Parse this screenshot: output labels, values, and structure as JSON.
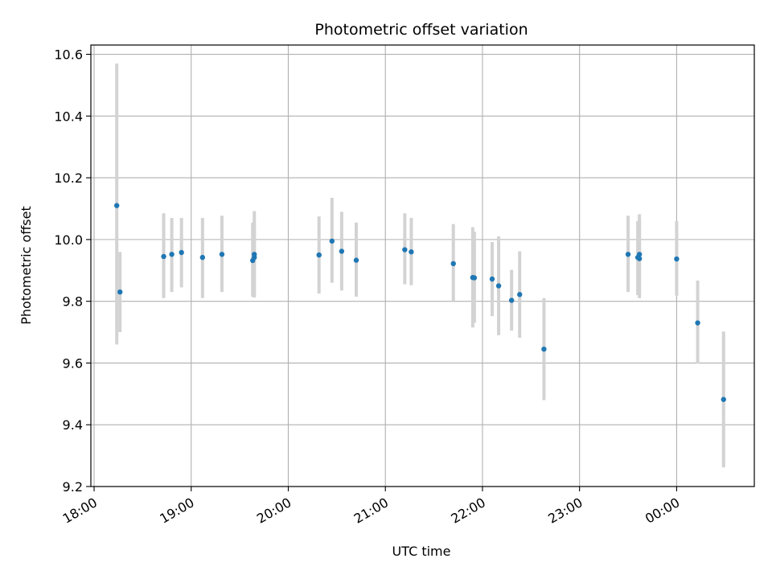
{
  "chart_data": {
    "type": "scatter",
    "title": "Photometric offset variation",
    "xlabel": "UTC time",
    "ylabel": "Photometric offset",
    "x_tick_labels": [
      "18:00",
      "19:00",
      "20:00",
      "21:00",
      "22:00",
      "23:00",
      "00:00"
    ],
    "y_tick_labels": [
      "9.2",
      "9.4",
      "9.6",
      "9.8",
      "10.0",
      "10.2",
      "10.4",
      "10.6"
    ],
    "x_ticks": [
      "18:00",
      "19:00",
      "20:00",
      "21:00",
      "22:00",
      "23:00",
      "00:00"
    ],
    "y_ticks": [
      9.2,
      9.4,
      9.6,
      9.8,
      10.0,
      10.2,
      10.4,
      10.6
    ],
    "xlim": [
      "17:58",
      "00:48"
    ],
    "ylim": [
      9.2,
      10.63
    ],
    "grid": true,
    "colors": {
      "point": "#1f77b4",
      "errorbar": "#d3d3d3",
      "grid": "#b0b0b0"
    },
    "points": [
      {
        "x": "18:14",
        "y": 10.11,
        "ylow": 9.66,
        "yhigh": 10.57
      },
      {
        "x": "18:16",
        "y": 9.83,
        "ylow": 9.7,
        "yhigh": 9.96
      },
      {
        "x": "18:43",
        "y": 9.945,
        "ylow": 9.81,
        "yhigh": 10.085
      },
      {
        "x": "18:48",
        "y": 9.952,
        "ylow": 9.83,
        "yhigh": 10.07
      },
      {
        "x": "18:54",
        "y": 9.958,
        "ylow": 9.845,
        "yhigh": 10.07
      },
      {
        "x": "19:07",
        "y": 9.942,
        "ylow": 9.81,
        "yhigh": 10.07
      },
      {
        "x": "19:19",
        "y": 9.952,
        "ylow": 9.83,
        "yhigh": 10.077
      },
      {
        "x": "19:38",
        "y": 9.932,
        "ylow": 9.815,
        "yhigh": 10.055
      },
      {
        "x": "19:39",
        "y": 9.942,
        "ylow": 9.82,
        "yhigh": 10.06
      },
      {
        "x": "19:39",
        "y": 9.952,
        "ylow": 9.812,
        "yhigh": 10.092
      },
      {
        "x": "20:19",
        "y": 9.95,
        "ylow": 9.825,
        "yhigh": 10.075
      },
      {
        "x": "20:27",
        "y": 9.995,
        "ylow": 9.86,
        "yhigh": 10.135
      },
      {
        "x": "20:33",
        "y": 9.962,
        "ylow": 9.835,
        "yhigh": 10.09
      },
      {
        "x": "20:42",
        "y": 9.933,
        "ylow": 9.815,
        "yhigh": 10.055
      },
      {
        "x": "21:12",
        "y": 9.967,
        "ylow": 9.855,
        "yhigh": 10.085
      },
      {
        "x": "21:16",
        "y": 9.96,
        "ylow": 9.852,
        "yhigh": 10.07
      },
      {
        "x": "21:42",
        "y": 9.922,
        "ylow": 9.8,
        "yhigh": 10.05
      },
      {
        "x": "21:54",
        "y": 9.877,
        "ylow": 9.715,
        "yhigh": 10.04
      },
      {
        "x": "21:55",
        "y": 9.876,
        "ylow": 9.73,
        "yhigh": 10.025
      },
      {
        "x": "22:06",
        "y": 9.872,
        "ylow": 9.752,
        "yhigh": 9.992
      },
      {
        "x": "22:10",
        "y": 9.85,
        "ylow": 9.69,
        "yhigh": 10.01
      },
      {
        "x": "22:18",
        "y": 9.803,
        "ylow": 9.705,
        "yhigh": 9.902
      },
      {
        "x": "22:23",
        "y": 9.822,
        "ylow": 9.682,
        "yhigh": 9.962
      },
      {
        "x": "22:38",
        "y": 9.645,
        "ylow": 9.48,
        "yhigh": 9.81
      },
      {
        "x": "23:30",
        "y": 9.952,
        "ylow": 9.83,
        "yhigh": 10.077
      },
      {
        "x": "23:36",
        "y": 9.942,
        "ylow": 9.82,
        "yhigh": 10.06
      },
      {
        "x": "23:37",
        "y": 9.938,
        "ylow": 9.81,
        "yhigh": 10.065
      },
      {
        "x": "23:37",
        "y": 9.952,
        "ylow": 9.82,
        "yhigh": 10.082
      },
      {
        "x": "00:00",
        "y": 9.937,
        "ylow": 9.818,
        "yhigh": 10.06
      },
      {
        "x": "00:13",
        "y": 9.73,
        "ylow": 9.598,
        "yhigh": 9.867
      },
      {
        "x": "00:29",
        "y": 9.482,
        "ylow": 9.262,
        "yhigh": 9.702
      }
    ]
  }
}
